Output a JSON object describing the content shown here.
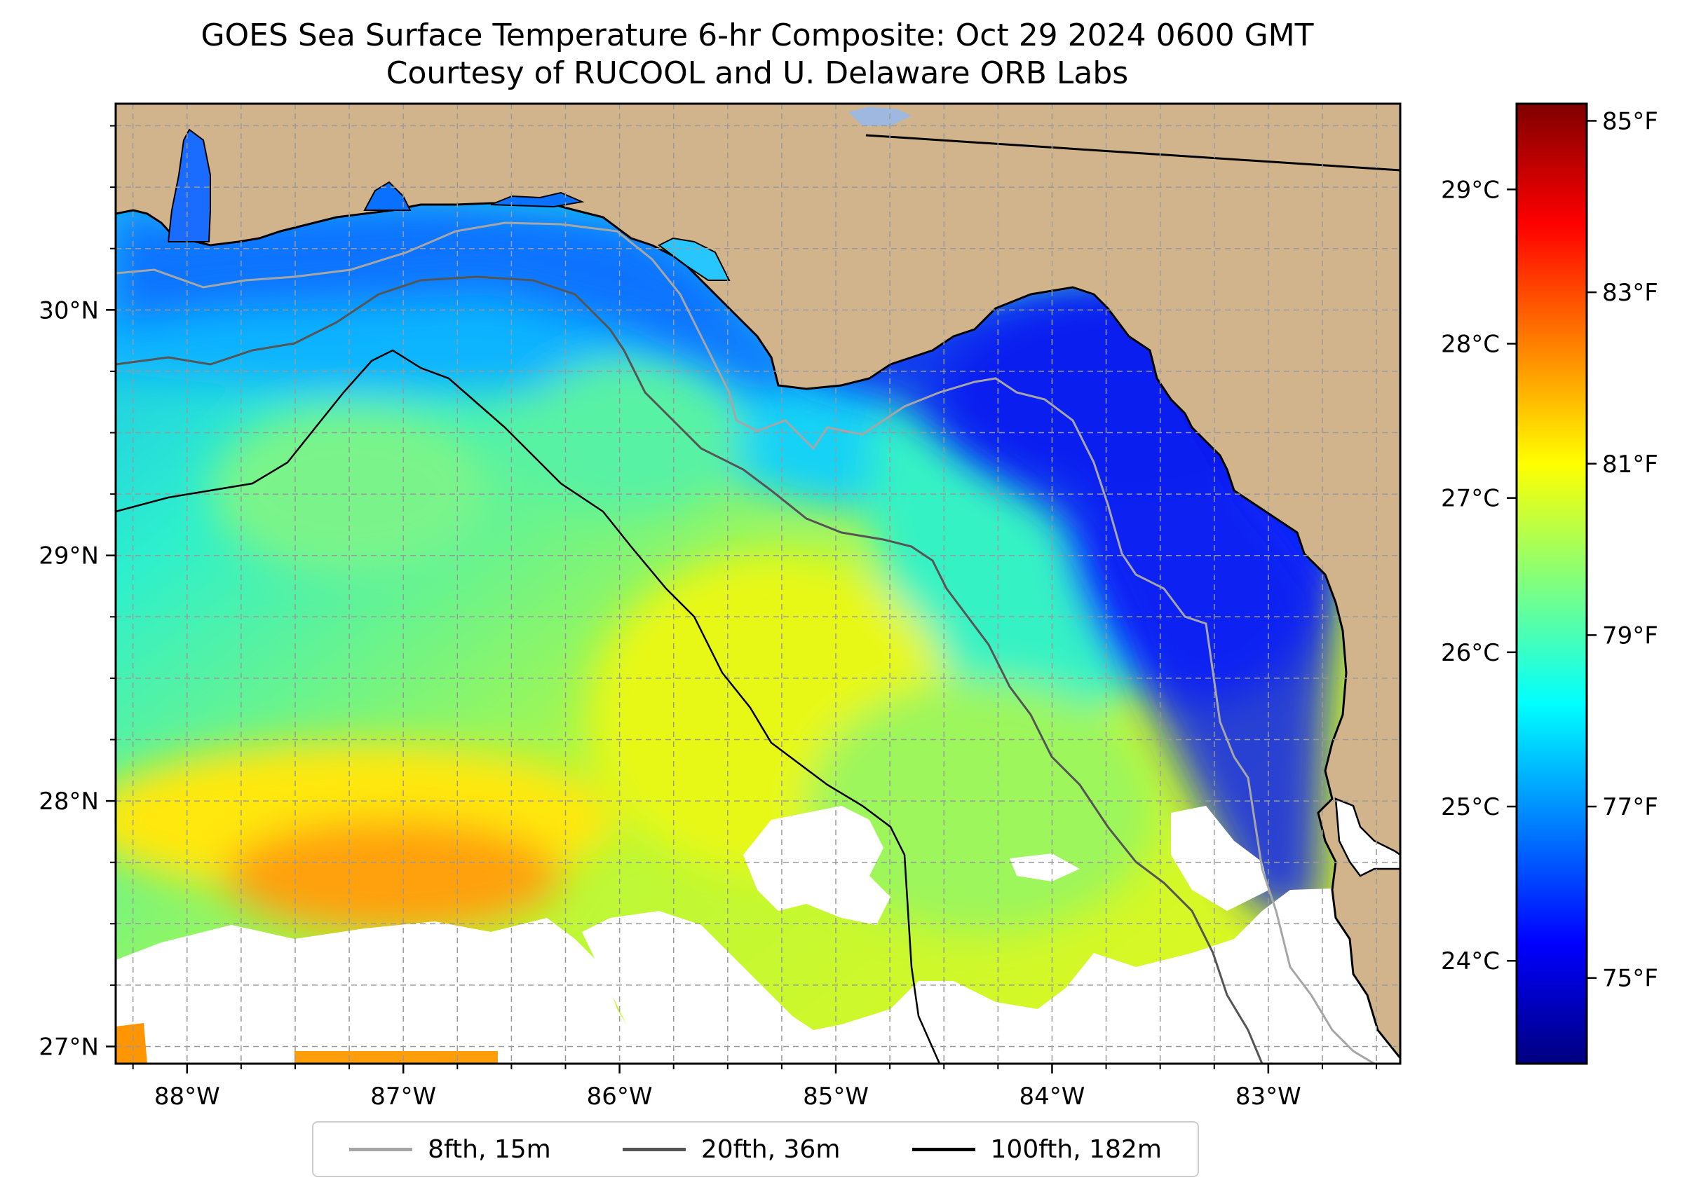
{
  "title": "GOES Sea Surface Temperature 6-hr Composite: Oct 29 2024 0600 GMT",
  "subtitle": "Courtesy of RUCOOL and U. Delaware ORB Labs",
  "map": {
    "extent": {
      "lon_min": -88.33,
      "lon_max": -82.39,
      "lat_min": 26.93,
      "lat_max": 30.84
    },
    "land_color": "#d2b48c",
    "grid": true,
    "lon_ticks": [
      {
        "value": -88,
        "label": "88°W"
      },
      {
        "value": -87,
        "label": "87°W"
      },
      {
        "value": -86,
        "label": "86°W"
      },
      {
        "value": -85,
        "label": "85°W"
      },
      {
        "value": -84,
        "label": "84°W"
      },
      {
        "value": -83,
        "label": "83°W"
      }
    ],
    "lat_ticks": [
      {
        "value": 30,
        "label": "30°N"
      },
      {
        "value": 29,
        "label": "29°N"
      },
      {
        "value": 28,
        "label": "28°N"
      },
      {
        "value": 27,
        "label": "27°N"
      }
    ]
  },
  "colorbar": {
    "colormap": "jet",
    "celsius_ticks": [
      {
        "value": 24,
        "label": "24°C"
      },
      {
        "value": 25,
        "label": "25°C"
      },
      {
        "value": 26,
        "label": "26°C"
      },
      {
        "value": 27,
        "label": "27°C"
      },
      {
        "value": 28,
        "label": "28°C"
      },
      {
        "value": 29,
        "label": "29°C"
      }
    ],
    "fahrenheit_ticks": [
      {
        "value": 75,
        "label": "75°F"
      },
      {
        "value": 77,
        "label": "77°F"
      },
      {
        "value": 79,
        "label": "79°F"
      },
      {
        "value": 81,
        "label": "81°F"
      },
      {
        "value": 83,
        "label": "83°F"
      },
      {
        "value": 85,
        "label": "85°F"
      }
    ],
    "range_f": [
      74,
      85.2
    ]
  },
  "legend": {
    "items": [
      {
        "label": "8fth, 15m",
        "color": "#a6a6a6"
      },
      {
        "label": "20fth, 36m",
        "color": "#555555"
      },
      {
        "label": "100fth, 182m",
        "color": "#000000"
      }
    ]
  }
}
